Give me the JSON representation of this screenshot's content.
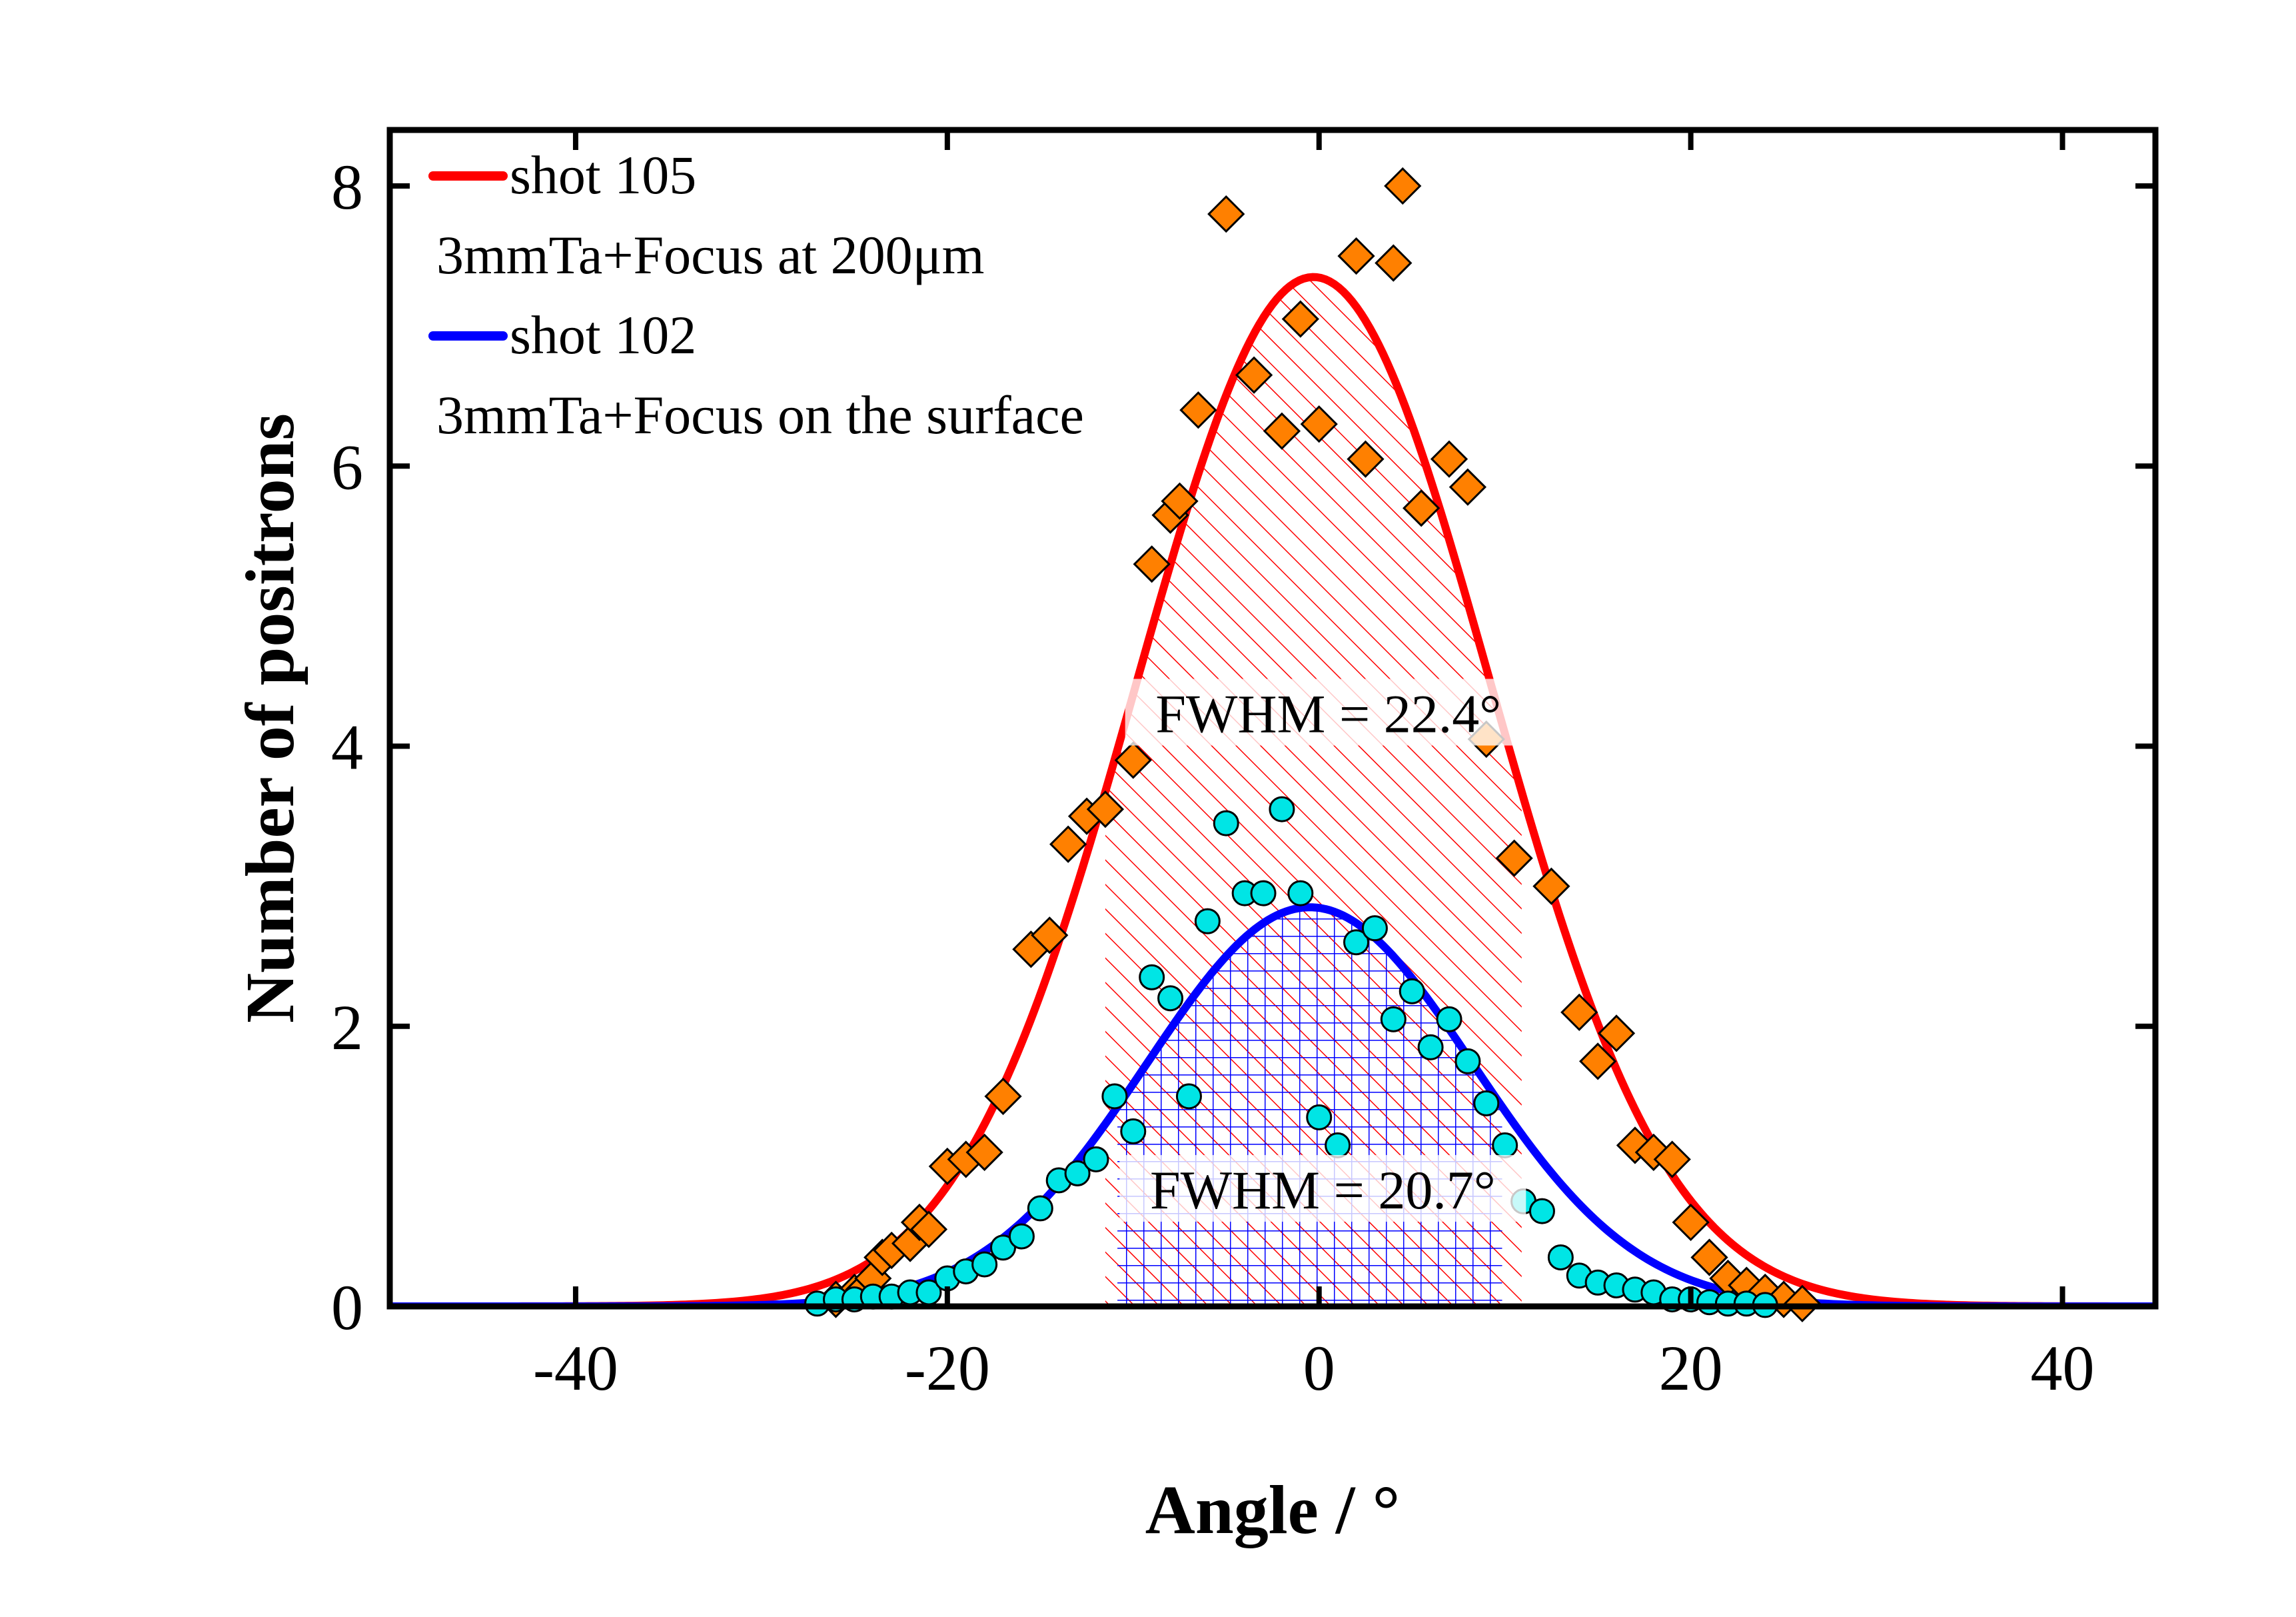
{
  "chart_data": {
    "type": "scatter",
    "title": "",
    "xlabel": "Angle  / °",
    "ylabel": "Number of positrons",
    "xlim": [
      -50,
      45
    ],
    "ylim": [
      0,
      8.4
    ],
    "x_ticks": [
      -40,
      -20,
      0,
      20,
      40
    ],
    "x_tick_labels": [
      "-40",
      "-20",
      "0",
      "20",
      "40"
    ],
    "y_ticks": [
      0,
      2,
      4,
      6,
      8
    ],
    "y_tick_labels": [
      "0",
      "2",
      "4",
      "6",
      "8"
    ],
    "grid": false,
    "legend": {
      "placement": "top-left",
      "entries": [
        {
          "label": "shot 105",
          "color": "#ff0000"
        },
        {
          "note": "3mmTa+Focus at 200μm"
        },
        {
          "label": "shot 102",
          "color": "#0000ff"
        },
        {
          "note": "3mmTa+Focus on the surface"
        }
      ]
    },
    "series": [
      {
        "name": "shot 105",
        "kind": "points",
        "marker": "diamond",
        "color": "#ff8000",
        "stroke": "#000000",
        "x": [
          -26,
          -25,
          -24.5,
          -24,
          -23.5,
          -23,
          -22,
          -21.5,
          -21,
          -20,
          -19,
          -18,
          -17,
          -15.5,
          -14.5,
          -13.5,
          -12.5,
          -11.5,
          -10,
          -9,
          -8,
          -7.5,
          -6.5,
          -5,
          -3.5,
          -2,
          -1,
          0,
          2,
          2.5,
          4,
          4.5,
          5.5,
          7,
          8,
          9,
          10.5,
          12.5,
          14,
          15,
          16,
          17,
          18,
          19,
          20,
          21,
          22,
          23,
          24,
          25,
          26
        ],
        "y": [
          0.05,
          0.1,
          0.12,
          0.2,
          0.35,
          0.4,
          0.45,
          0.6,
          0.55,
          1.0,
          1.05,
          1.1,
          1.5,
          2.55,
          2.65,
          3.3,
          3.5,
          3.55,
          3.9,
          5.3,
          5.65,
          5.75,
          6.4,
          7.8,
          6.65,
          6.25,
          7.05,
          6.3,
          7.5,
          6.05,
          7.45,
          8.0,
          5.7,
          6.05,
          5.85,
          4.05,
          3.2,
          3.0,
          2.1,
          1.75,
          1.95,
          1.15,
          1.1,
          1.05,
          0.6,
          0.35,
          0.2,
          0.15,
          0.1,
          0.05,
          0.02
        ]
      },
      {
        "name": "shot 102",
        "kind": "points",
        "marker": "circle",
        "color": "#00e5e5",
        "stroke": "#000000",
        "x": [
          -27,
          -26,
          -25,
          -24,
          -23,
          -22,
          -21,
          -20,
          -19,
          -18,
          -17,
          -16,
          -15,
          -14,
          -13,
          -12,
          -11,
          -10,
          -9,
          -8,
          -7,
          -6,
          -5,
          -4,
          -3,
          -2,
          -1,
          0,
          1,
          2,
          3,
          4,
          5,
          6,
          7,
          8,
          9,
          10,
          11,
          12,
          13,
          14,
          15,
          16,
          17,
          18,
          19,
          20,
          21,
          22,
          23,
          24
        ],
        "y": [
          0.02,
          0.05,
          0.05,
          0.07,
          0.07,
          0.1,
          0.1,
          0.2,
          0.25,
          0.3,
          0.42,
          0.5,
          0.7,
          0.9,
          0.95,
          1.05,
          1.5,
          1.25,
          2.35,
          2.2,
          1.5,
          2.75,
          3.45,
          2.95,
          2.95,
          3.55,
          2.95,
          1.35,
          1.15,
          2.6,
          2.7,
          2.05,
          2.25,
          1.85,
          2.05,
          1.75,
          1.45,
          1.15,
          0.75,
          0.68,
          0.35,
          0.22,
          0.17,
          0.15,
          0.12,
          0.1,
          0.05,
          0.05,
          0.03,
          0.02,
          0.02,
          0.01
        ]
      },
      {
        "name": "shot 105",
        "kind": "fit",
        "color": "#ff0000",
        "amplitude": 7.35,
        "center": -0.3,
        "fwhm": 22.4
      },
      {
        "name": "shot 102",
        "kind": "fit",
        "color": "#0000ff",
        "amplitude": 2.85,
        "center": -0.5,
        "fwhm": 20.7
      }
    ],
    "annotations": [
      {
        "text": "FWHM = 22.4°",
        "x": 0.5,
        "y": 4.1
      },
      {
        "text": "FWHM = 20.7°",
        "x": 0.2,
        "y": 0.7
      }
    ],
    "shaded_regions": [
      {
        "series": "shot 105",
        "x_from": -11.5,
        "x_to": 10.9,
        "fill": "hatch-diagonal",
        "color": "#ff0000"
      },
      {
        "series": "shot 102",
        "x_from": -10.85,
        "x_to": 9.85,
        "fill": "hatch-grid",
        "color": "#0000ff"
      }
    ]
  }
}
